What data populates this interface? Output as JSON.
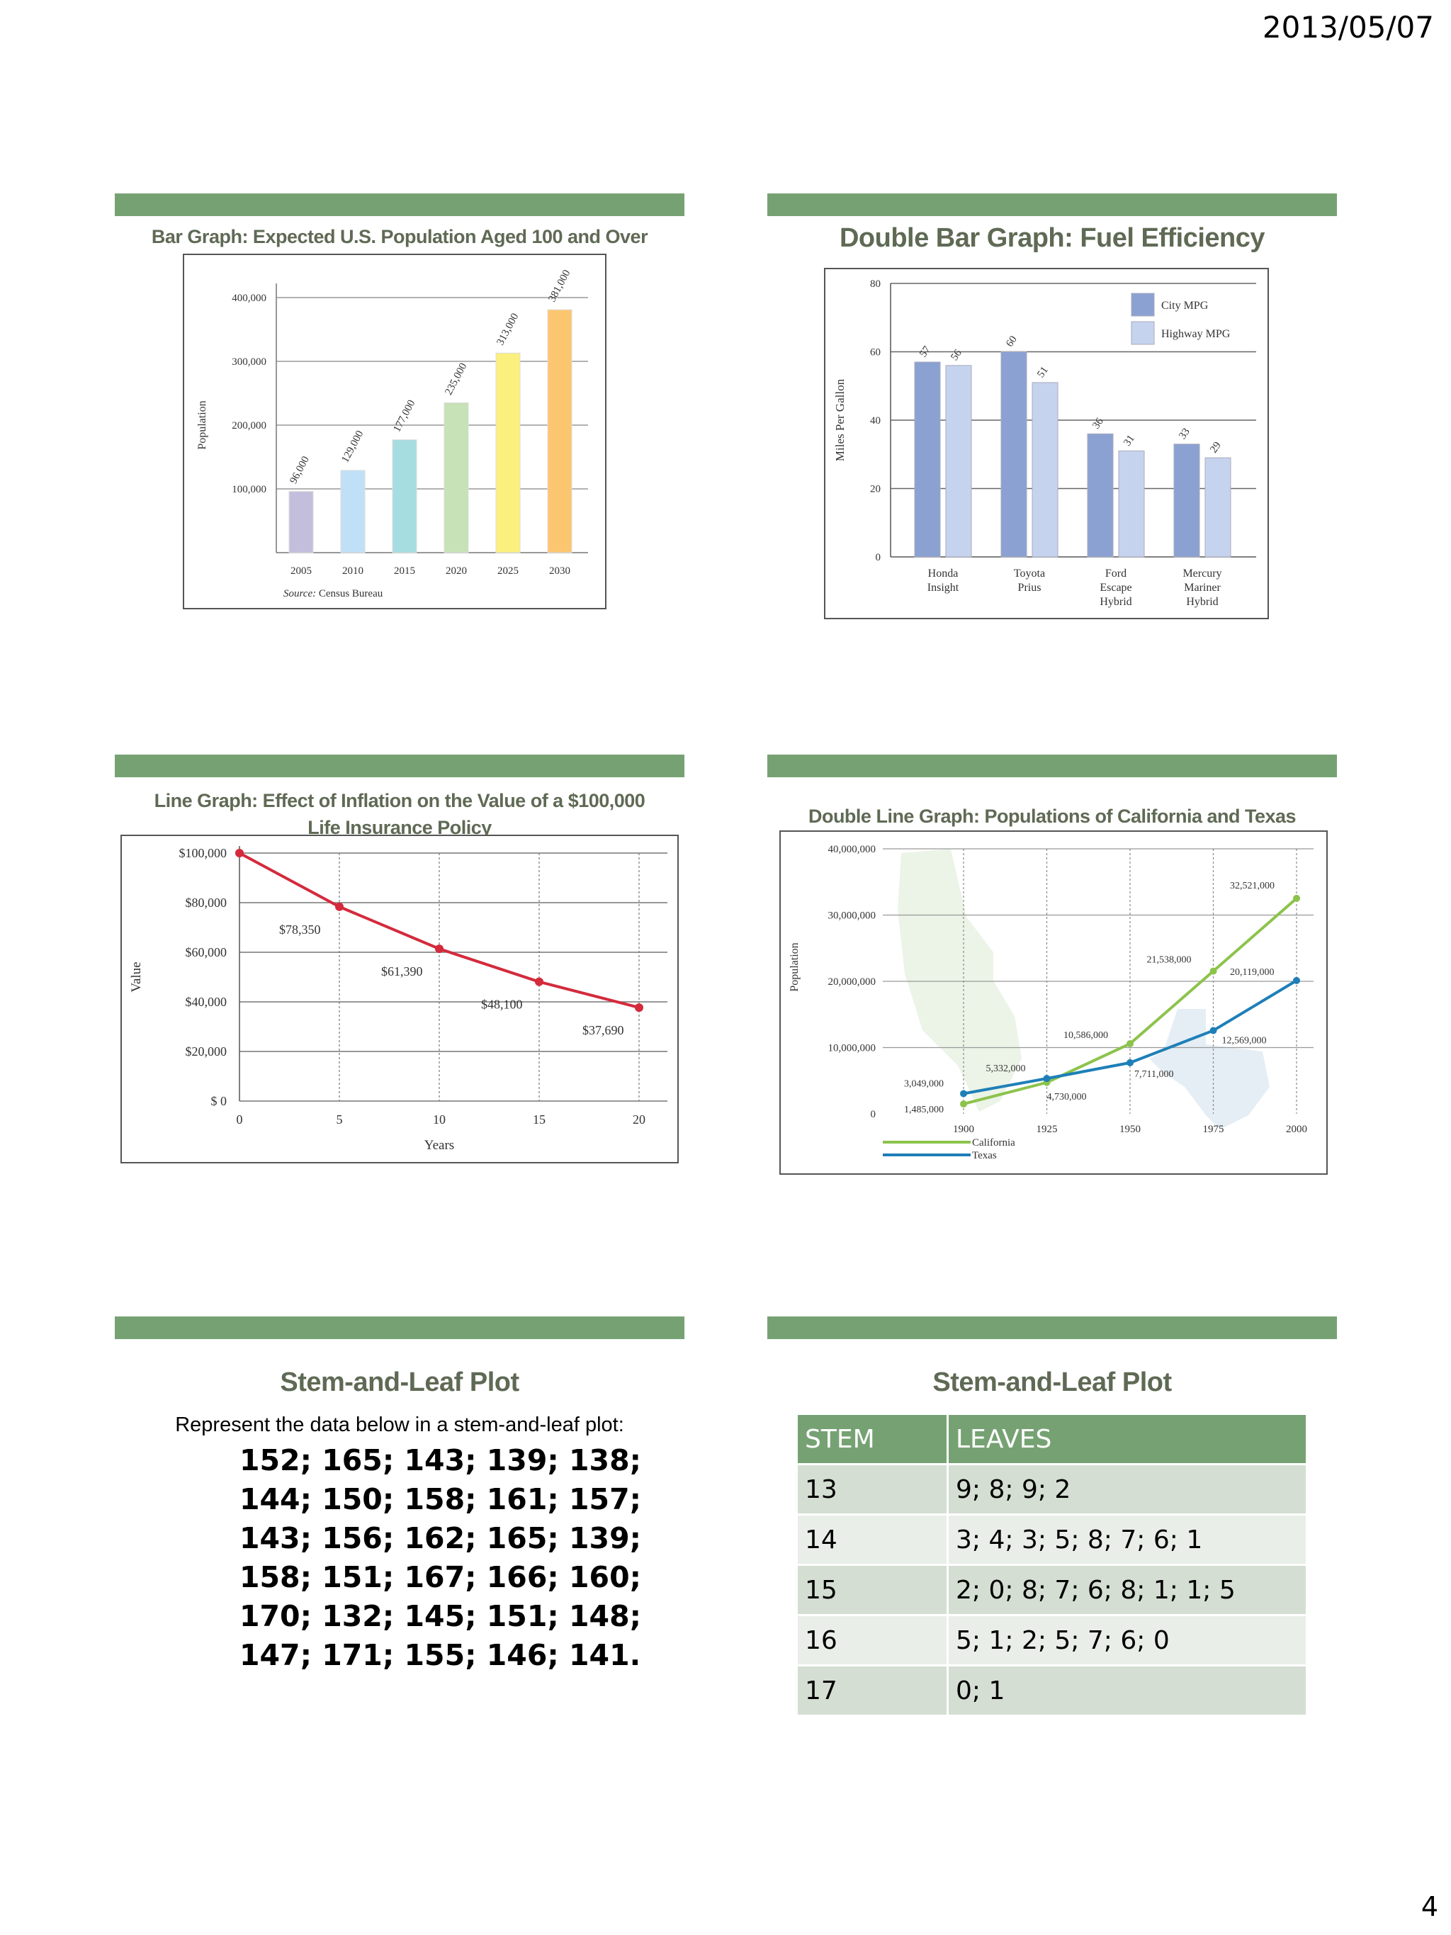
{
  "header": {
    "date": "2013/05/07"
  },
  "footer": {
    "page_number": "4"
  },
  "slides": {
    "bar_graph": {
      "title": "Bar Graph:  Expected U.S. Population Aged 100 and Over"
    },
    "double_bar": {
      "title": "Double Bar Graph:  Fuel Efficiency"
    },
    "line_graph": {
      "title_line1": "Line Graph:  Effect of Inflation on the Value of a $100,000",
      "title_line2": "Life Insurance Policy"
    },
    "double_line": {
      "title": "Double Line Graph:  Populations of California and Texas"
    },
    "stem_intro": {
      "title": "Stem-and-Leaf Plot",
      "instruction": "Represent the data below in a stem-and-leaf plot:",
      "data_lines": [
        "152; 165; 143; 139; 138;",
        "144; 150; 158; 161; 157;",
        "143; 156; 162; 165; 139;",
        "158; 151; 167; 166; 160;",
        "170; 132; 145; 151; 148;",
        "147; 171; 155; 146; 141."
      ]
    },
    "stem_table": {
      "title": "Stem-and-Leaf Plot",
      "headers": [
        "STEM",
        "LEAVES"
      ],
      "rows": [
        [
          "13",
          "9; 8; 9; 2"
        ],
        [
          "14",
          "3; 4; 3; 5; 8; 7; 6; 1"
        ],
        [
          "15",
          "2; 0; 8; 7; 6; 8; 1; 1; 5"
        ],
        [
          "16",
          "5; 1; 2; 5; 7; 6; 0"
        ],
        [
          "17",
          "0; 1"
        ]
      ]
    }
  },
  "chart_data": [
    {
      "type": "bar",
      "ylabel": "Population",
      "source": "Census Bureau",
      "source_prefix": "Source:",
      "categories": [
        "2005",
        "2010",
        "2015",
        "2020",
        "2025",
        "2030"
      ],
      "values": [
        96000,
        129000,
        177000,
        235000,
        313000,
        381000
      ],
      "value_labels": [
        "96,000",
        "129,000",
        "177,000",
        "235,000",
        "313,000",
        "381,000"
      ],
      "y_ticks": [
        "100,000",
        "200,000",
        "300,000",
        "400,000"
      ],
      "ylim": [
        0,
        400000
      ],
      "colors": [
        "#c4bedd",
        "#bfe0f6",
        "#a6dde0",
        "#c6e2b6",
        "#fbf07d",
        "#fcc671"
      ]
    },
    {
      "type": "bar",
      "ylabel": "Miles Per Gallon",
      "categories": [
        [
          "Honda",
          "Insight"
        ],
        [
          "Toyota",
          "Prius"
        ],
        [
          "Ford",
          "Escape",
          "Hybrid"
        ],
        [
          "Mercury",
          "Mariner",
          "Hybrid"
        ]
      ],
      "series": [
        {
          "name": "City MPG",
          "values": [
            57,
            60,
            36,
            33
          ],
          "color": "#8ba1d2"
        },
        {
          "name": "Highway MPG",
          "values": [
            56,
            51,
            31,
            29
          ],
          "color": "#c5d3ee"
        }
      ],
      "y_ticks": [
        "0",
        "20",
        "40",
        "60",
        "80"
      ],
      "ylim": [
        0,
        80
      ],
      "legend": "top-right"
    },
    {
      "type": "line",
      "xlabel": "Years",
      "ylabel": "Value",
      "x": [
        0,
        5,
        10,
        15,
        20
      ],
      "values": [
        100000,
        78350,
        61390,
        48100,
        37690
      ],
      "point_labels": [
        "",
        "$78,350",
        "$61,390",
        "$48,100",
        "$37,690"
      ],
      "y_ticks": [
        "$ 0",
        "$20,000",
        "$40,000",
        "$60,000",
        "$80,000",
        "$100,000"
      ],
      "x_ticks": [
        "0",
        "5",
        "10",
        "15",
        "20"
      ],
      "ylim": [
        0,
        100000
      ],
      "color": "#d42a3c"
    },
    {
      "type": "line",
      "ylabel": "Population",
      "x": [
        1900,
        1925,
        1950,
        1975,
        2000
      ],
      "series": [
        {
          "name": "California",
          "values": [
            1485000,
            4730000,
            10586000,
            21538000,
            32521000
          ],
          "labels": [
            "1,485,000",
            "4,730,000",
            "10,586,000",
            "21,538,000",
            "32,521,000"
          ],
          "color": "#8cc34b"
        },
        {
          "name": "Texas",
          "values": [
            3049000,
            5332000,
            7711000,
            12569000,
            20119000
          ],
          "labels": [
            "3,049,000",
            "5,332,000",
            "7,711,000",
            "12,569,000",
            "20,119,000"
          ],
          "color": "#1e7fb8"
        }
      ],
      "y_ticks": [
        "0",
        "10,000,000",
        "20,000,000",
        "30,000,000",
        "40,000,000"
      ],
      "x_ticks": [
        "1900",
        "1925",
        "1950",
        "1975",
        "2000"
      ],
      "ylim": [
        0,
        40000000
      ],
      "legend": "bottom-left"
    }
  ]
}
